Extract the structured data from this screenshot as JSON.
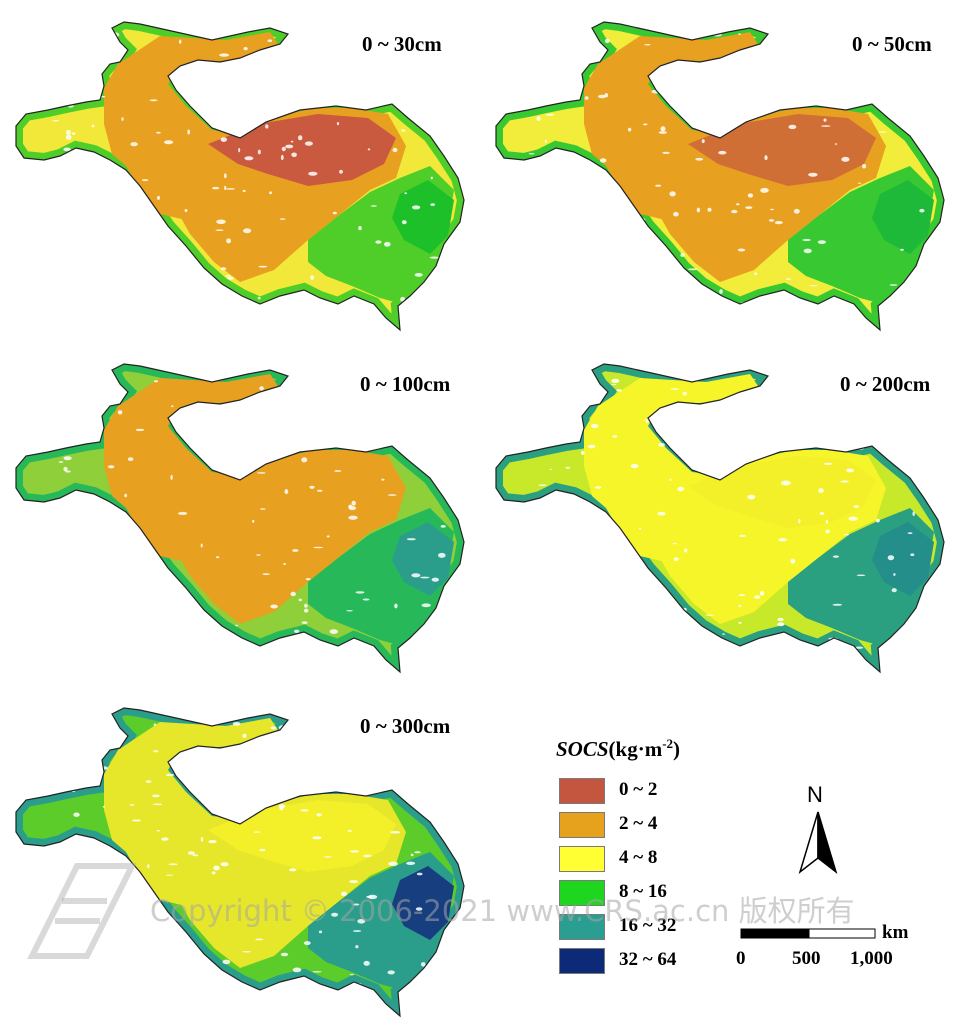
{
  "panels": [
    {
      "label": "0 ~ 30cm",
      "colors": [
        "#c9593f",
        "#e8a020",
        "#f2e83a",
        "#4fce2a",
        "#1ec02a"
      ]
    },
    {
      "label": "0 ~ 50cm",
      "colors": [
        "#cf6f35",
        "#e8a020",
        "#f2ec3a",
        "#38c832",
        "#1fb93a"
      ]
    },
    {
      "label": "0 ~ 100cm",
      "colors": [
        "#e8a020",
        "#e8a020",
        "#8fd03a",
        "#27b85a",
        "#2a9e8a"
      ]
    },
    {
      "label": "0 ~ 200cm",
      "colors": [
        "#f3f02a",
        "#f5f52a",
        "#c8e82a",
        "#2aa080",
        "#248e8a"
      ]
    },
    {
      "label": "0 ~ 300cm",
      "colors": [
        "#f3f02a",
        "#e6e62a",
        "#5ccc2a",
        "#2a9e8a",
        "#173f7f"
      ]
    }
  ],
  "legend": {
    "title_var": "SOCS",
    "title_unit": "(kg·m",
    "title_exp": "-2",
    "title_close": ")",
    "items": [
      {
        "label": "0 ~ 2",
        "color": "#c4553e"
      },
      {
        "label": "2 ~ 4",
        "color": "#e6a21c"
      },
      {
        "label": "4 ~ 8",
        "color": "#ffff33"
      },
      {
        "label": "8 ~ 16",
        "color": "#1fd61f"
      },
      {
        "label": "16 ~ 32",
        "color": "#2b9e92"
      },
      {
        "label": "32 ~ 64",
        "color": "#0c2a78"
      }
    ]
  },
  "north_arrow": {
    "letter": "N"
  },
  "scale_bar": {
    "unit": "km",
    "ticks": [
      "0",
      "500",
      "1,000"
    ]
  },
  "watermark": "Copyright © 2006-2021 www.CRS.ac.cn 版权所有"
}
